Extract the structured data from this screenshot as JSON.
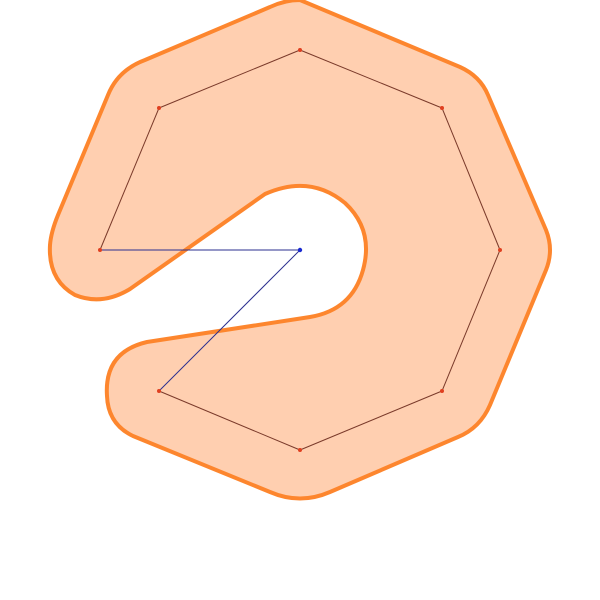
{
  "colors": {
    "background": "#ffffff",
    "buffer_fill": "#ffcfb0",
    "buffer_stroke": "#fd862e",
    "outline_stroke": "#7a3a2a",
    "center_edge_stroke": "#2b2f8f",
    "vertex_dot": "#e04020",
    "center_dot": "#1a2ad0"
  },
  "shape": {
    "kind": "buffered-polyline",
    "vertex_count": 7,
    "center_vertex_count": 1
  }
}
